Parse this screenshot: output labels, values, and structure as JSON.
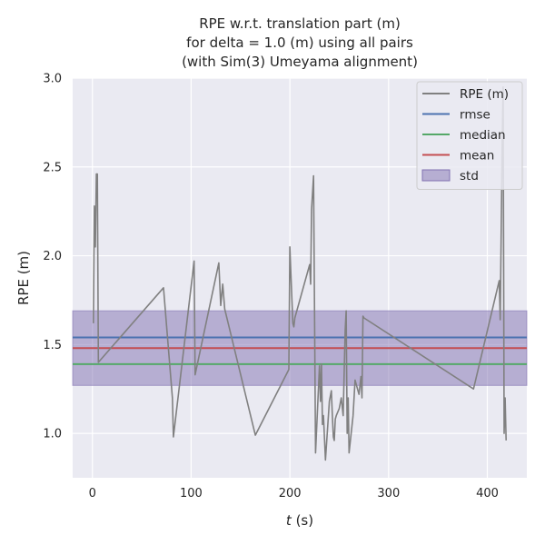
{
  "chart_data": {
    "type": "line",
    "title_lines": [
      "RPE w.r.t. translation part (m)",
      "for delta = 1.0 (m) using all pairs",
      "(with Sim(3) Umeyama alignment)"
    ],
    "xlabel_italic": "t",
    "xlabel_rest": " (s)",
    "ylabel": "RPE (m)",
    "xlim": [
      -20,
      440
    ],
    "ylim": [
      0.75,
      3.0
    ],
    "xticks": [
      0,
      100,
      200,
      300,
      400
    ],
    "yticks": [
      1.0,
      1.5,
      2.0,
      2.5,
      3.0
    ],
    "xtick_labels": [
      "0",
      "100",
      "200",
      "300",
      "400"
    ],
    "ytick_labels": [
      "1.0",
      "1.5",
      "2.0",
      "2.5",
      "3.0"
    ],
    "grid": true,
    "legend_position": "top-right",
    "legend": [
      {
        "key": "rpe",
        "label": "RPE (m)",
        "color": "#808080",
        "kind": "line"
      },
      {
        "key": "rmse",
        "label": "rmse",
        "color": "#4c72b0",
        "kind": "line"
      },
      {
        "key": "median",
        "label": "median",
        "color": "#55a868",
        "kind": "line"
      },
      {
        "key": "mean",
        "label": "mean",
        "color": "#c44e52",
        "kind": "line"
      },
      {
        "key": "std",
        "label": "std",
        "color": "#8172b2",
        "kind": "band"
      }
    ],
    "stats": {
      "rmse": 1.54,
      "median": 1.39,
      "mean": 1.48,
      "std_low": 1.27,
      "std_high": 1.69
    },
    "series": [
      {
        "key": "rpe",
        "x": [
          1,
          2,
          3,
          4,
          5,
          6,
          72,
          81,
          82,
          103,
          104,
          128,
          130,
          132,
          134,
          165,
          199,
          200,
          203,
          204,
          205,
          220,
          221,
          222,
          224,
          226,
          230,
          231,
          232,
          233,
          234,
          236,
          240,
          242,
          243,
          244,
          245,
          246,
          247,
          250,
          252,
          254,
          256,
          257,
          258,
          259,
          260,
          264,
          266,
          270,
          272,
          273,
          274,
          275,
          386,
          412,
          413,
          414,
          415,
          416,
          417,
          418,
          419
        ],
        "y": [
          1.62,
          2.28,
          2.05,
          2.46,
          2.46,
          1.4,
          1.82,
          1.2,
          0.98,
          1.97,
          1.33,
          1.96,
          1.72,
          1.84,
          1.7,
          0.99,
          1.36,
          2.05,
          1.62,
          1.6,
          1.65,
          1.95,
          1.84,
          2.26,
          2.45,
          0.89,
          1.38,
          1.18,
          1.39,
          1.05,
          1.1,
          0.85,
          1.18,
          1.24,
          1.1,
          0.98,
          0.96,
          1.08,
          1.1,
          1.14,
          1.2,
          1.1,
          1.58,
          1.69,
          1.0,
          1.2,
          0.89,
          1.1,
          1.3,
          1.22,
          1.32,
          1.2,
          1.66,
          1.65,
          1.25,
          1.86,
          1.64,
          2.1,
          2.6,
          2.95,
          1.0,
          1.2,
          0.96
        ]
      }
    ]
  }
}
